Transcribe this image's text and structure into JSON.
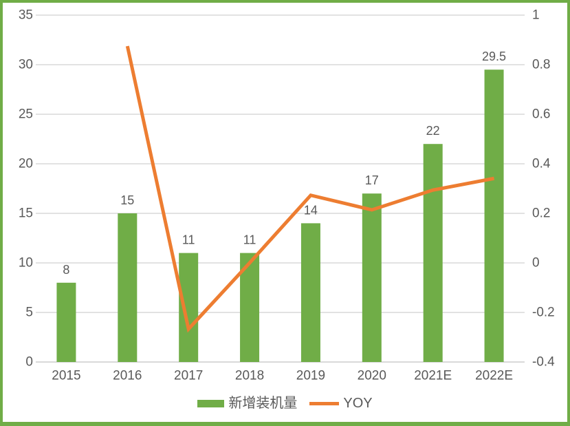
{
  "page": {
    "background": "#FFFFFF",
    "frame_color": "#70AD47"
  },
  "colors": {
    "bar_green": "#70AD47",
    "line_orange": "#ED7D31",
    "text_gray": "#595959",
    "gridline_gray": "#D9D9D9"
  },
  "legend": {
    "bar_label": "新增装机量",
    "line_label": "YOY"
  },
  "chart_data": {
    "type": "combo-bar-line",
    "title": "",
    "categories": [
      "2015",
      "2016",
      "2017",
      "2018",
      "2019",
      "2020",
      "2021E",
      "2022E"
    ],
    "series": [
      {
        "name": "新增装机量",
        "type": "bar",
        "axis": "left",
        "color": "#70AD47",
        "values": [
          8,
          15,
          11,
          11,
          14,
          17,
          22,
          29.5
        ],
        "data_labels": [
          "8",
          "15",
          "11",
          "11",
          "14",
          "17",
          "22",
          "29.5"
        ]
      },
      {
        "name": "YOY",
        "type": "line",
        "axis": "right",
        "color": "#ED7D31",
        "values": [
          null,
          0.875,
          -0.267,
          0,
          0.273,
          0.214,
          0.294,
          0.341
        ]
      }
    ],
    "left_axis": {
      "min": 0,
      "max": 35,
      "step": 5,
      "tick_labels": [
        "0",
        "5",
        "10",
        "15",
        "20",
        "25",
        "30",
        "35"
      ]
    },
    "right_axis": {
      "min": -0.4,
      "max": 1,
      "step": 0.2,
      "tick_labels": [
        "-0.4",
        "-0.2",
        "0",
        "0.2",
        "0.4",
        "0.6",
        "0.8",
        "1"
      ]
    },
    "grid": "horizontal",
    "legend_position": "bottom"
  }
}
